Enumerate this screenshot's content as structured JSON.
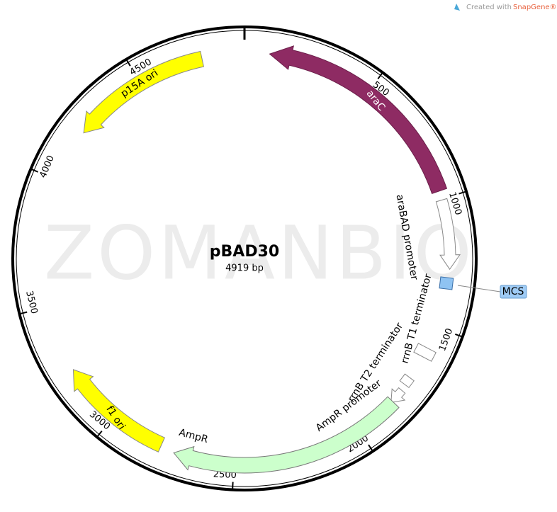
{
  "credit": {
    "prefix": "Created with",
    "brand": "SnapGene®"
  },
  "watermark": "ZOMANBIO",
  "map": {
    "name": "pBAD30",
    "size_label": "4919 bp",
    "ticks": [
      500,
      1000,
      1500,
      2000,
      2500,
      3000,
      3500,
      4000,
      4500
    ],
    "features": [
      {
        "label": "araC"
      },
      {
        "label": "araBAD promoter"
      },
      {
        "label": "MCS"
      },
      {
        "label": "rrnB T1 terminator"
      },
      {
        "label": "rrnB T2 terminator"
      },
      {
        "label": "AmpR promoter"
      },
      {
        "label": "AmpR"
      },
      {
        "label": "f1 ori"
      },
      {
        "label": "p15A ori"
      }
    ]
  }
}
